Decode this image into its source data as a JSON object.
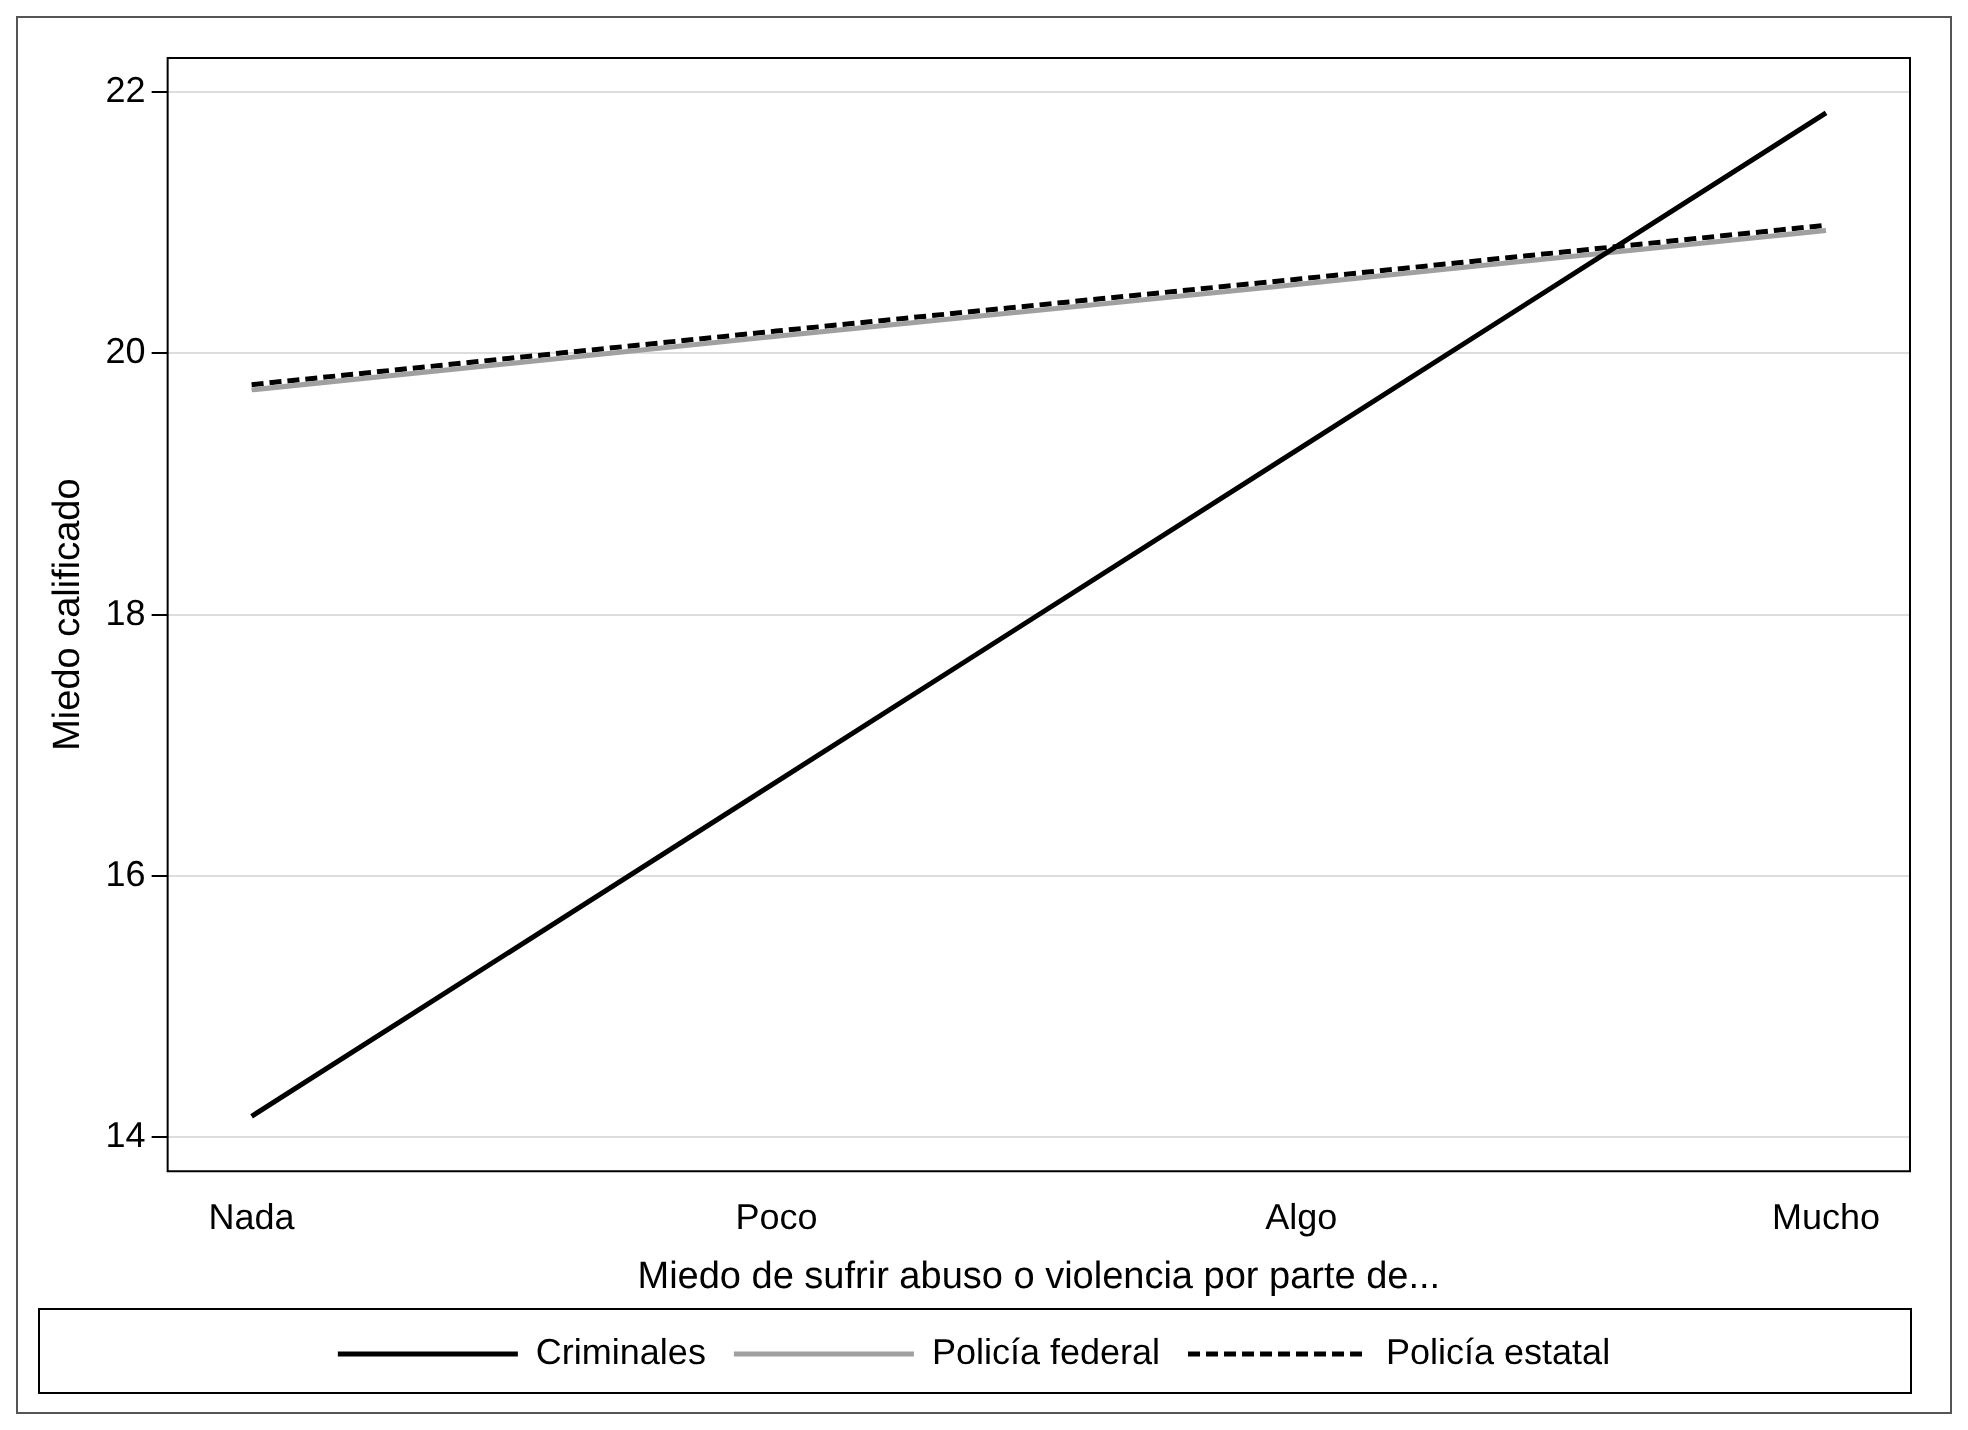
{
  "chart_data": {
    "type": "line",
    "xlabel": "Miedo de sufrir abuso o violencia por parte de...",
    "ylabel": "Miedo calificado",
    "categories": [
      "Nada",
      "Poco",
      "Algo",
      "Mucho"
    ],
    "series": [
      {
        "name": "Criminales",
        "color": "#000000",
        "values": [
          14.16,
          16.72,
          19.28,
          21.84
        ],
        "line_style": "solid"
      },
      {
        "name": "Policía federal",
        "color": "#a0a0a0",
        "values": [
          19.72,
          20.13,
          20.53,
          20.94
        ],
        "line_style": "solid"
      },
      {
        "name": "Policía estatal",
        "color": "#000000",
        "values": [
          19.76,
          20.17,
          20.57,
          20.98
        ],
        "line_style": "dashed"
      }
    ],
    "ylim": [
      13.74,
      22.26
    ],
    "yticks": [
      14,
      16,
      18,
      20,
      22
    ],
    "grid": "y",
    "legend": "bottom",
    "marker": "none"
  }
}
